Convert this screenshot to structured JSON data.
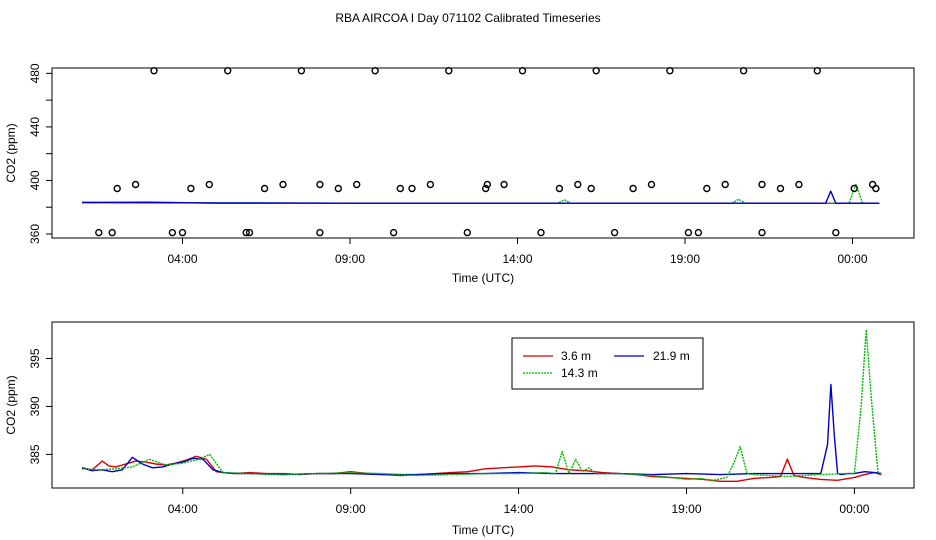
{
  "title": "RBA AIRCOA I  Day 071102  Calibrated Timeseries",
  "chart_data": [
    {
      "type": "line",
      "panel": "top",
      "xlabel": "Time (UTC)",
      "ylabel": "CO2 (ppm)",
      "xlim": [
        0,
        24
      ],
      "ylim": [
        357,
        484
      ],
      "x_ticks": [
        3,
        8,
        13,
        18,
        23
      ],
      "x_tick_labels": [
        "04:00",
        "09:00",
        "14:00",
        "19:00",
        "00:00"
      ],
      "y_ticks": [
        360,
        400,
        440,
        480
      ],
      "y_tick_labels": [
        "360",
        "400",
        "440",
        "480"
      ],
      "y_minor_ticks": [
        380,
        420,
        460
      ],
      "series": [
        {
          "color": "#dd0000",
          "style": "solid",
          "x": [
            0.0,
            2.0,
            4.0,
            6.0,
            8.0,
            10.0,
            12.0,
            14.0,
            16.0,
            18.0,
            20.0,
            22.0,
            23.8
          ],
          "values": [
            383.5,
            383.8,
            383.0,
            383.0,
            383.0,
            383.0,
            383.0,
            383.0,
            383.0,
            383.0,
            383.0,
            383.0,
            383.0
          ]
        },
        {
          "color": "#00bb00",
          "style": "dotted",
          "x": [
            0.0,
            4.0,
            8.0,
            12.0,
            14.2,
            14.4,
            14.6,
            18.0,
            19.4,
            19.6,
            19.8,
            22.0,
            22.9,
            23.1,
            23.3,
            23.8
          ],
          "values": [
            383.5,
            383.2,
            383.0,
            383.0,
            383.0,
            385.5,
            383.0,
            383.0,
            383.0,
            386.0,
            383.0,
            383.0,
            383.0,
            397.5,
            383.0,
            383.0
          ]
        },
        {
          "color": "#0000cc",
          "style": "solid",
          "x": [
            0.0,
            4.0,
            8.0,
            12.0,
            16.0,
            20.0,
            22.2,
            22.35,
            22.5,
            23.8
          ],
          "values": [
            383.5,
            383.2,
            383.0,
            383.0,
            383.0,
            383.0,
            383.0,
            392.0,
            383.0,
            383.0
          ]
        },
        {
          "name": "",
          "marker": "circle",
          "color": "#000000",
          "x": [
            0.5,
            1.05,
            1.6,
            2.15,
            2.7,
            3.25,
            3.8,
            4.35,
            4.9,
            5.45,
            6.0,
            6.55,
            7.1,
            7.65,
            8.2,
            8.75,
            9.3,
            9.85,
            10.4,
            10.95,
            11.5,
            12.05,
            12.6,
            13.15,
            13.7,
            14.25,
            14.8,
            15.35,
            15.9,
            16.45,
            17.0,
            17.55,
            18.1,
            18.65,
            19.2,
            19.75,
            20.3,
            20.85,
            21.4,
            21.95,
            22.5,
            23.05,
            23.6,
            0.9,
            3.0,
            5.0,
            7.1,
            9.5,
            12.1,
            15.2,
            18.4,
            20.3,
            23.7
          ],
          "values": [
            361,
            394,
            397,
            482,
            361,
            394,
            397,
            482,
            361,
            394,
            397,
            482,
            361,
            394,
            397,
            482,
            361,
            394,
            397,
            482,
            361,
            394,
            397,
            482,
            361,
            394,
            397,
            482,
            361,
            394,
            397,
            482,
            361,
            394,
            397,
            482,
            361,
            394,
            397,
            482,
            361,
            394,
            397,
            361,
            361,
            361,
            397,
            394,
            397,
            394,
            361,
            397,
            394
          ]
        }
      ]
    },
    {
      "type": "line",
      "panel": "bottom",
      "xlabel": "Time (UTC)",
      "ylabel": "CO2 (ppm)",
      "xlim": [
        0,
        24
      ],
      "ylim": [
        381.5,
        398.8
      ],
      "x_ticks": [
        3,
        8,
        13,
        18,
        23
      ],
      "x_tick_labels": [
        "04:00",
        "09:00",
        "14:00",
        "19:00",
        "00:00"
      ],
      "y_ticks": [
        385,
        390,
        395
      ],
      "y_tick_labels": [
        "385",
        "390",
        "395"
      ],
      "legend": {
        "placement": "top-right",
        "entries": [
          {
            "label": "3.6 m",
            "color": "#dd0000",
            "style": "solid"
          },
          {
            "label": "21.9 m",
            "color": "#0000cc",
            "style": "solid"
          },
          {
            "label": "14.3 m",
            "color": "#00bb00",
            "style": "dotted"
          }
        ]
      },
      "series": [
        {
          "name": "3.6 m",
          "color": "#dd0000",
          "style": "solid",
          "x": [
            0.0,
            0.3,
            0.6,
            0.8,
            1.0,
            1.3,
            1.6,
            1.9,
            2.2,
            2.5,
            2.8,
            3.1,
            3.4,
            3.7,
            4.0,
            4.5,
            5.0,
            5.5,
            6.0,
            6.5,
            7.0,
            7.5,
            8.0,
            8.5,
            9.0,
            9.5,
            10.0,
            10.5,
            11.0,
            11.5,
            12.0,
            12.5,
            13.0,
            13.5,
            14.0,
            14.5,
            15.0,
            15.5,
            16.0,
            16.5,
            17.0,
            17.5,
            18.0,
            18.5,
            19.0,
            19.5,
            20.0,
            20.5,
            20.8,
            21.0,
            21.2,
            21.5,
            22.0,
            22.5,
            23.0,
            23.3,
            23.6,
            23.8
          ],
          "values": [
            383.6,
            383.4,
            384.3,
            383.8,
            383.7,
            384.0,
            384.3,
            384.2,
            384.0,
            383.9,
            384.1,
            384.4,
            384.8,
            384.5,
            383.2,
            383.0,
            383.1,
            383.0,
            383.0,
            382.9,
            383.0,
            383.0,
            383.2,
            383.0,
            382.9,
            382.8,
            382.9,
            383.0,
            383.1,
            383.2,
            383.5,
            383.6,
            383.7,
            383.8,
            383.7,
            383.4,
            383.3,
            383.1,
            383.0,
            382.9,
            382.7,
            382.6,
            382.5,
            382.4,
            382.2,
            382.2,
            382.5,
            382.6,
            382.7,
            384.5,
            382.8,
            382.6,
            382.4,
            382.3,
            382.6,
            382.9,
            383.1,
            382.9
          ]
        },
        {
          "name": "21.9 m",
          "color": "#0000cc",
          "style": "solid",
          "x": [
            0.0,
            0.3,
            0.6,
            0.9,
            1.2,
            1.5,
            1.8,
            2.1,
            2.4,
            2.7,
            3.0,
            3.3,
            3.6,
            3.9,
            4.2,
            4.6,
            5.0,
            6.0,
            7.0,
            8.0,
            9.0,
            10.0,
            11.0,
            12.0,
            13.0,
            14.0,
            15.0,
            16.0,
            17.0,
            18.0,
            19.0,
            20.0,
            21.0,
            22.0,
            22.2,
            22.3,
            22.4,
            22.5,
            22.6,
            22.8,
            23.0,
            23.3,
            23.6,
            23.8
          ],
          "values": [
            383.6,
            383.3,
            383.4,
            383.2,
            383.4,
            384.7,
            384.0,
            383.6,
            383.7,
            384.0,
            384.2,
            384.6,
            384.5,
            383.4,
            383.1,
            383.0,
            383.0,
            382.9,
            383.0,
            383.0,
            382.9,
            382.9,
            383.0,
            383.0,
            383.1,
            383.0,
            383.0,
            383.0,
            382.9,
            383.0,
            382.9,
            383.0,
            383.0,
            383.0,
            386.0,
            392.3,
            387.0,
            383.0,
            382.9,
            383.0,
            383.0,
            383.2,
            383.1,
            383.0
          ]
        },
        {
          "name": "14.3 m",
          "color": "#00bb00",
          "style": "dotted",
          "x": [
            0.0,
            0.5,
            1.0,
            1.5,
            2.0,
            2.5,
            3.0,
            3.5,
            3.8,
            4.2,
            5.0,
            6.0,
            7.0,
            8.0,
            9.0,
            10.0,
            11.0,
            12.0,
            13.0,
            13.8,
            14.1,
            14.3,
            14.5,
            14.7,
            14.9,
            15.1,
            15.3,
            16.0,
            17.0,
            17.5,
            18.0,
            18.4,
            18.8,
            19.2,
            19.4,
            19.6,
            19.8,
            20.0,
            21.0,
            22.0,
            22.6,
            23.0,
            23.2,
            23.35,
            23.5,
            23.7,
            23.8
          ],
          "values": [
            383.5,
            383.4,
            383.5,
            383.7,
            384.5,
            383.9,
            384.1,
            384.5,
            385.0,
            383.1,
            383.0,
            382.9,
            383.0,
            383.1,
            383.0,
            382.8,
            382.9,
            383.0,
            383.0,
            383.1,
            383.0,
            385.3,
            383.0,
            384.5,
            383.2,
            383.6,
            383.0,
            383.0,
            382.8,
            382.6,
            382.4,
            382.5,
            382.3,
            382.6,
            384.0,
            385.8,
            383.0,
            382.9,
            382.7,
            382.9,
            383.0,
            383.0,
            390.0,
            398.0,
            391.0,
            383.2,
            383.0
          ]
        }
      ]
    }
  ]
}
